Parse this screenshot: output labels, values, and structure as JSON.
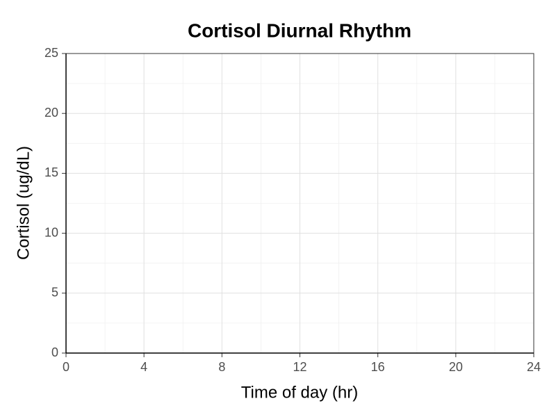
{
  "chart_data": {
    "type": "line",
    "title": "Cortisol Diurnal Rhythm",
    "x_label": "Time of day (hr)",
    "y_label": "Cortisol (ug/dL)",
    "series": [],
    "xlim": [
      0,
      24
    ],
    "xticks": [
      0,
      4,
      8,
      12,
      16,
      20,
      24
    ],
    "ylim": [
      0,
      25
    ],
    "yticks": [
      0,
      5,
      10,
      15,
      20,
      25
    ],
    "grid": true
  }
}
